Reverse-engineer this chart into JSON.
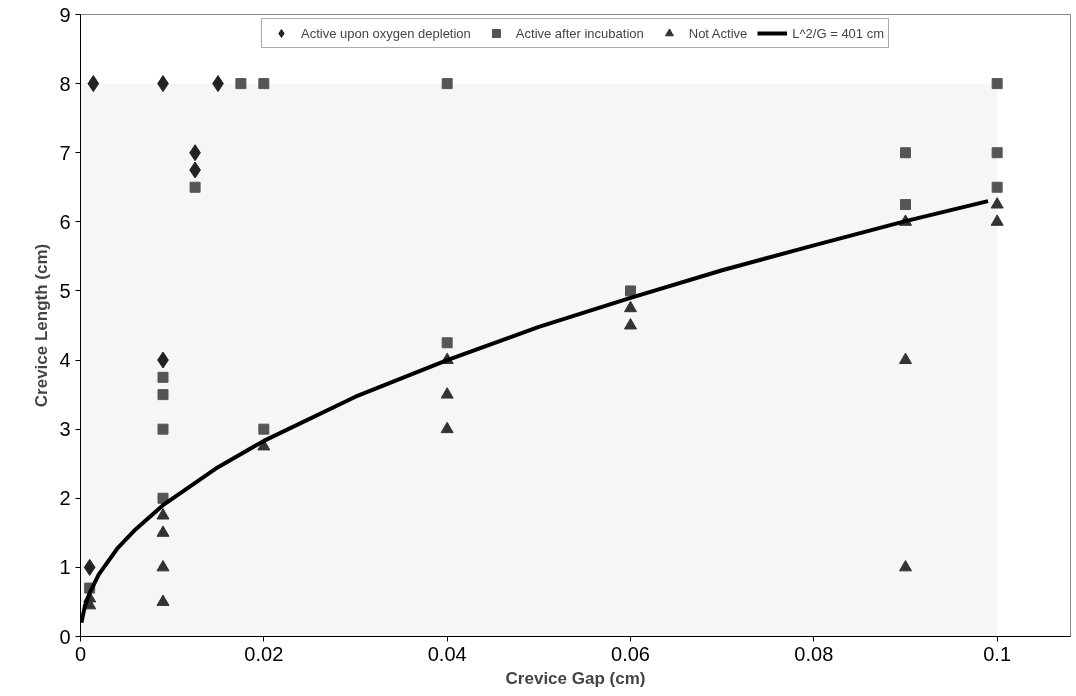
{
  "chart_data": {
    "type": "scatter",
    "xlabel": "Crevice Gap (cm)",
    "ylabel": "Crevice Length (cm)",
    "xlim": [
      0,
      0.108
    ],
    "ylim": [
      0,
      9
    ],
    "xticks": [
      0,
      {
        "value": 0.02,
        "label": "0.02"
      },
      {
        "value": 0.04,
        "label": "0.04"
      },
      {
        "value": 0.06,
        "label": "0.06"
      },
      {
        "value": 0.08,
        "label": "0.08"
      },
      {
        "value": 0.1,
        "label": "0.1"
      }
    ],
    "yticks": [
      0,
      1,
      2,
      3,
      4,
      5,
      6,
      7,
      8,
      9
    ],
    "grid": false,
    "legend": "top",
    "series": [
      {
        "type": "area",
        "color": "#e6e6e6",
        "x": [
          0,
          0.1
        ],
        "values": [
          8,
          8
        ]
      },
      {
        "name": "Active upon oxygen depletion",
        "marker": "diamond",
        "color": "#222222",
        "x": [
          0.001,
          0.0014,
          0.009,
          0.015,
          0.0125,
          0.0125,
          0.009
        ],
        "values": [
          1,
          8,
          8,
          8,
          7,
          6.75,
          4
        ]
      },
      {
        "name": "Active after incubation",
        "marker": "square",
        "color": "#555555",
        "x": [
          0.0175,
          0.02,
          0.04,
          0.1,
          0.0125,
          0.009,
          0.009,
          0.009,
          0.009,
          0.001,
          0.02,
          0.04,
          0.06,
          0.09,
          0.09,
          0.1,
          0.1
        ],
        "values": [
          8,
          8,
          8,
          8,
          6.5,
          3.75,
          3.5,
          3,
          2,
          0.7,
          3,
          4.25,
          5,
          7,
          6.25,
          7,
          6.5
        ]
      },
      {
        "name": "Not Active",
        "marker": "triangle",
        "color": "#333333",
        "x": [
          0.009,
          0.009,
          0.009,
          0.009,
          0.001,
          0.001,
          0.02,
          0.04,
          0.04,
          0.04,
          0.06,
          0.06,
          0.09,
          0.09,
          0.09,
          0.1,
          0.1
        ],
        "values": [
          1.75,
          1.5,
          1,
          0.5,
          0.55,
          0.45,
          2.75,
          4,
          3.5,
          3,
          4.75,
          4.5,
          6,
          4,
          1,
          6.25,
          6
        ]
      },
      {
        "name": "L^2/G = 401 cm",
        "type": "line",
        "color": "#000000",
        "marker": "none",
        "x": [
          0.0001,
          0.0005,
          0.001,
          0.002,
          0.004,
          0.006,
          0.009,
          0.015,
          0.02,
          0.03,
          0.04,
          0.05,
          0.06,
          0.07,
          0.08,
          0.09,
          0.099
        ],
        "values": [
          0.2,
          0.45,
          0.63,
          0.9,
          1.27,
          1.55,
          1.9,
          2.45,
          2.83,
          3.47,
          4.0,
          4.48,
          4.9,
          5.3,
          5.66,
          6.01,
          6.3
        ]
      }
    ]
  }
}
